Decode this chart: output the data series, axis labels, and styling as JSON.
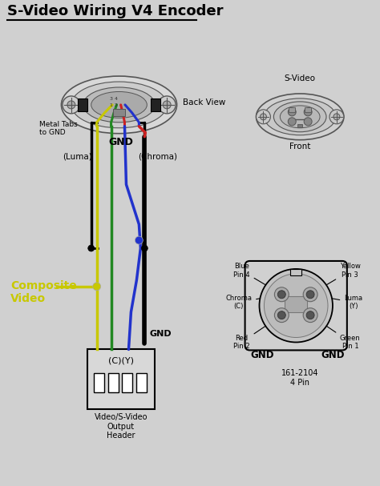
{
  "title": "S-Video Wiring V4 Encoder",
  "bg_color": "#d0d0d0",
  "title_color": "#000000",
  "title_fontsize": 13,
  "wire_colors": {
    "yellow": "#c8c800",
    "green": "#228822",
    "blue": "#2233cc",
    "red": "#cc2222",
    "black": "#111111"
  },
  "labels": {
    "back_view": "Back View",
    "metal_tabs": "Metal Tabs\nto GND",
    "gnd_top": "GND",
    "luma": "(Luma)",
    "chroma": "(Chroma)",
    "composite_video": "Composite\nVideo",
    "gnd_bottom": "GND",
    "cy_label": "(C)(Y)",
    "header_label": "Video/S-Video\nOutput\nHeader",
    "svideo_top": "S-Video",
    "front_label": "Front",
    "blue_pin4": "Blue\nPin 4",
    "yellow_pin3": "Yellow\nPin 3",
    "chroma_c": "Chroma\n(C)",
    "luma_y": "Luma\n(Y)",
    "red_pin2": "Red\nPin 2",
    "green_pin1": "Green\nPin 1",
    "gnd_left": "GND",
    "gnd_right": "GND",
    "part_num": "161-2104\n4 Pin"
  }
}
